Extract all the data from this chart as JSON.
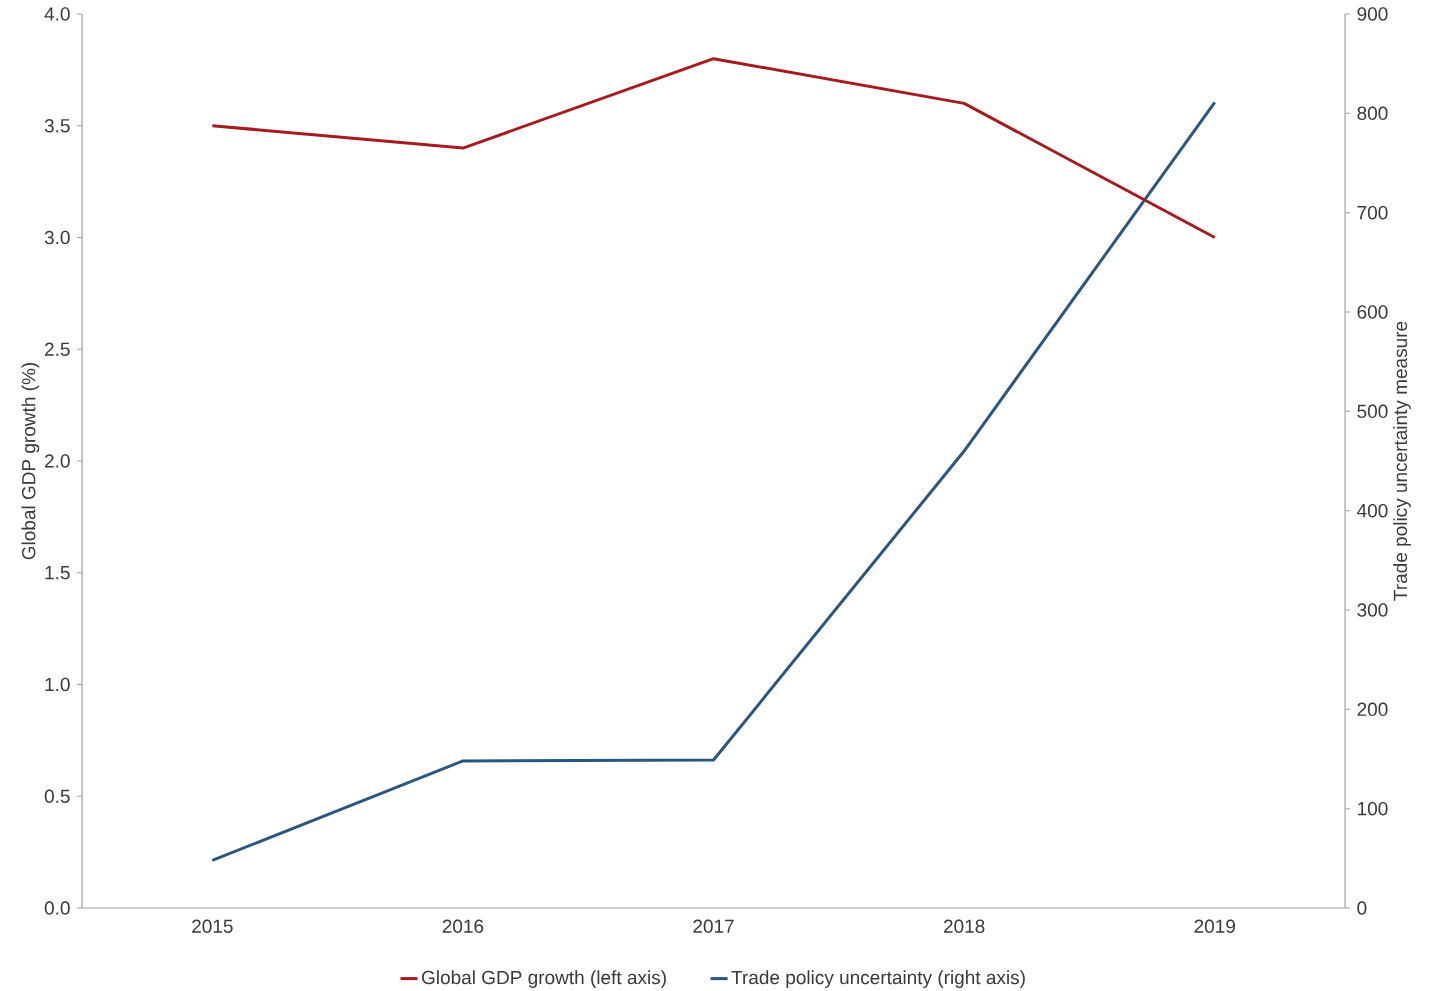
{
  "chart_data": {
    "type": "line",
    "categories": [
      "2015",
      "2016",
      "2017",
      "2018",
      "2019"
    ],
    "ylabel": "Global GDP growth (%)",
    "y2label": "Trade policy uncertainty measure",
    "ylim": [
      0,
      4
    ],
    "yticks": [
      {
        "value": 0,
        "label": "0.0"
      },
      {
        "value": 0.5,
        "label": "0.5"
      },
      {
        "value": 1,
        "label": "1.0"
      },
      {
        "value": 1.5,
        "label": "1.5"
      },
      {
        "value": 2,
        "label": "2.0"
      },
      {
        "value": 2.5,
        "label": "2.5"
      },
      {
        "value": 3,
        "label": "3.0"
      },
      {
        "value": 3.5,
        "label": "3.5"
      },
      {
        "value": 4,
        "label": "4.0"
      }
    ],
    "y2lim": [
      0,
      900
    ],
    "y2ticks": [
      0,
      100,
      200,
      300,
      400,
      500,
      600,
      700,
      800,
      900
    ],
    "series": [
      {
        "name": "Global GDP growth (left axis)",
        "color": "#a51c1f",
        "axis": "y",
        "values": [
          3.5,
          3.4,
          3.8,
          3.6,
          3.0
        ]
      },
      {
        "name": "Trade policy uncertainty (right axis)",
        "color": "#2a567f",
        "axis": "y2",
        "values": [
          48,
          148,
          149,
          460,
          811
        ]
      }
    ],
    "legend": "bottom",
    "marker": "none",
    "line_style": "solid",
    "grid": false
  }
}
